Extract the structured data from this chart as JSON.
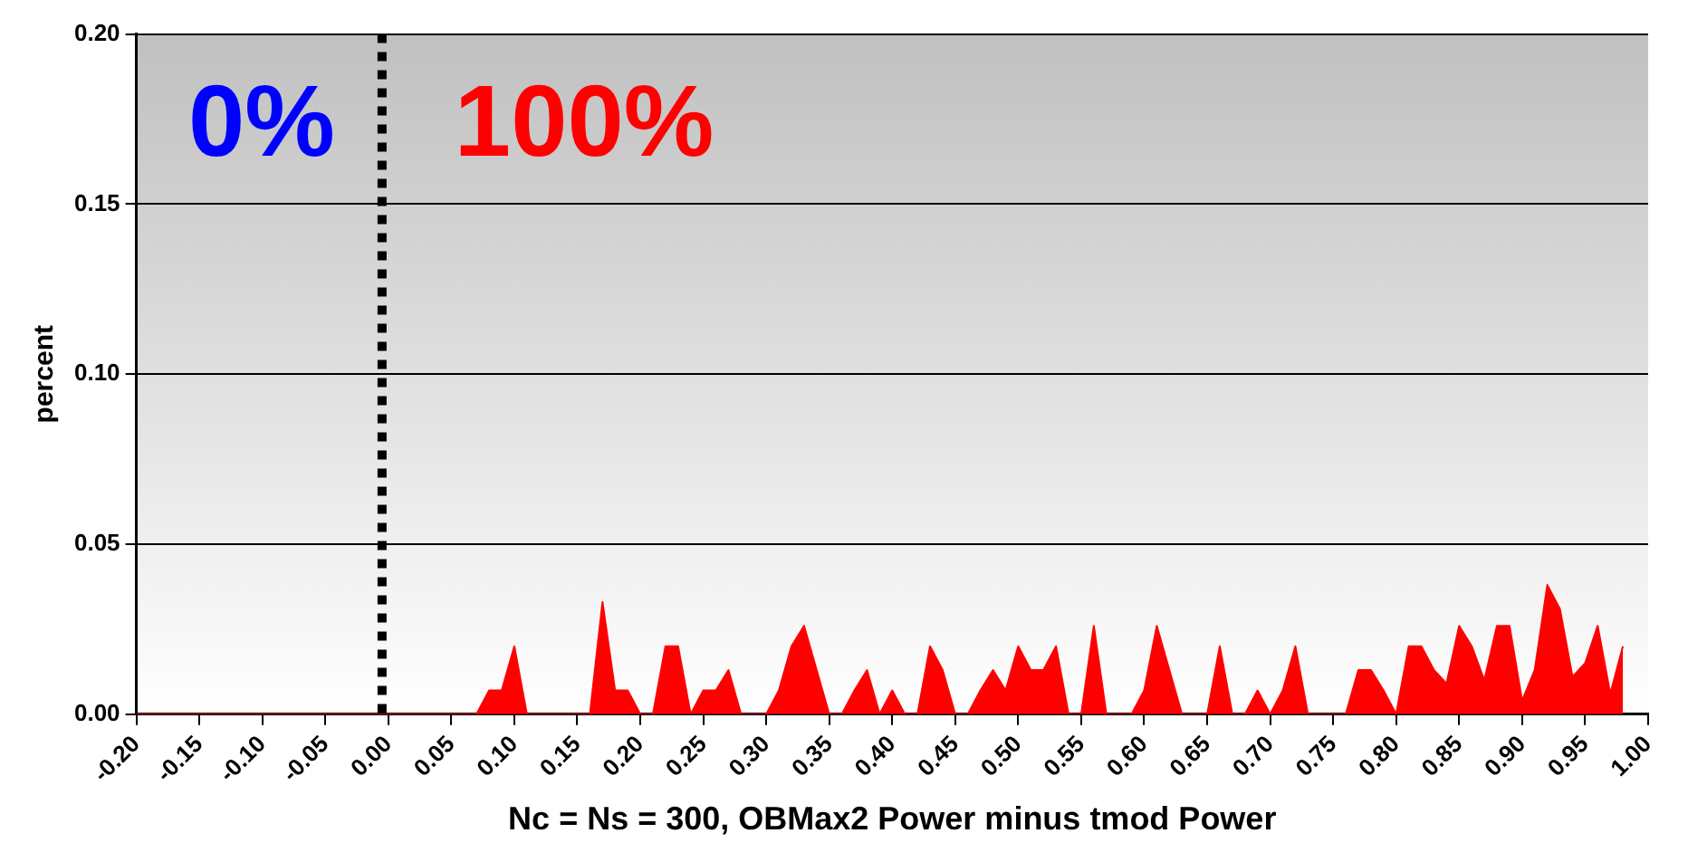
{
  "chart_data": {
    "type": "area",
    "xlabel": "Nc = Ns = 300, OBMax2 Power minus tmod Power",
    "ylabel": "percent",
    "annotations": [
      "0%",
      "100%"
    ],
    "x": [
      -0.2,
      -0.19,
      -0.18,
      -0.17,
      -0.16,
      -0.15,
      -0.14,
      -0.13,
      -0.12,
      -0.11,
      -0.1,
      -0.09,
      -0.08,
      -0.07,
      -0.06,
      -0.05,
      -0.04,
      -0.03,
      -0.02,
      -0.01,
      0,
      0.01,
      0.02,
      0.03,
      0.04,
      0.05,
      0.06,
      0.07,
      0.08,
      0.09,
      0.1,
      0.11,
      0.12,
      0.13,
      0.14,
      0.15,
      0.16,
      0.17,
      0.18,
      0.19,
      0.2,
      0.21,
      0.22,
      0.23,
      0.24,
      0.25,
      0.26,
      0.27,
      0.28,
      0.29,
      0.3,
      0.31,
      0.32,
      0.33,
      0.34,
      0.35,
      0.36,
      0.37,
      0.38,
      0.39,
      0.4,
      0.41,
      0.42,
      0.43,
      0.44,
      0.45,
      0.46,
      0.47,
      0.48,
      0.49,
      0.5,
      0.51,
      0.52,
      0.53,
      0.54,
      0.55,
      0.56,
      0.57,
      0.58,
      0.59,
      0.6,
      0.61,
      0.62,
      0.63,
      0.64,
      0.65,
      0.66,
      0.67,
      0.68,
      0.69,
      0.7,
      0.71,
      0.72,
      0.73,
      0.74,
      0.75,
      0.76,
      0.77,
      0.78,
      0.79,
      0.8,
      0.81,
      0.82,
      0.83,
      0.84,
      0.85,
      0.86,
      0.87,
      0.88,
      0.89,
      0.9,
      0.91,
      0.92,
      0.93,
      0.94,
      0.95,
      0.96,
      0.97,
      0.98
    ],
    "series": [
      {
        "color": "#ff0000",
        "values": [
          0,
          0,
          0,
          0,
          0,
          0,
          0,
          0,
          0,
          0,
          0,
          0,
          0,
          0,
          0,
          0,
          0,
          0,
          0,
          0,
          0,
          0,
          0,
          0,
          0,
          0,
          0,
          0,
          0.007,
          0.007,
          0.02,
          0,
          0,
          0,
          0,
          0,
          0,
          0.033,
          0.007,
          0.007,
          0,
          0,
          0.02,
          0.02,
          0,
          0.007,
          0.007,
          0.013,
          0,
          0,
          0,
          0.007,
          0.02,
          0.026,
          0.013,
          0,
          0,
          0.007,
          0.013,
          0,
          0.007,
          0,
          0,
          0.02,
          0.013,
          0,
          0,
          0.007,
          0.013,
          0.007,
          0.02,
          0.013,
          0.013,
          0.02,
          0,
          0,
          0.026,
          0,
          0,
          0,
          0.007,
          0.026,
          0.013,
          0,
          0,
          0,
          0.02,
          0,
          0,
          0.007,
          0,
          0.007,
          0.02,
          0,
          0,
          0,
          0,
          0.013,
          0.013,
          0.007,
          0,
          0.02,
          0.02,
          0.013,
          0.009,
          0.026,
          0.02,
          0.01,
          0.026,
          0.026,
          0.004,
          0.013,
          0.038,
          0.031,
          0.011,
          0.015,
          0.026,
          0.006,
          0.02
        ]
      }
    ],
    "xlim": [
      -0.2,
      1.0
    ],
    "xticks": [
      {
        "value": -0.2,
        "label": "-0.20"
      },
      {
        "value": -0.15,
        "label": "-0.15"
      },
      {
        "value": -0.1,
        "label": "-0.10"
      },
      {
        "value": -0.05,
        "label": "-0.05"
      },
      {
        "value": 0,
        "label": "0.00"
      },
      {
        "value": 0.05,
        "label": "0.05"
      },
      {
        "value": 0.1,
        "label": "0.10"
      },
      {
        "value": 0.15,
        "label": "0.15"
      },
      {
        "value": 0.2,
        "label": "0.20"
      },
      {
        "value": 0.25,
        "label": "0.25"
      },
      {
        "value": 0.3,
        "label": "0.30"
      },
      {
        "value": 0.35,
        "label": "0.35"
      },
      {
        "value": 0.4,
        "label": "0.40"
      },
      {
        "value": 0.45,
        "label": "0.45"
      },
      {
        "value": 0.5,
        "label": "0.50"
      },
      {
        "value": 0.55,
        "label": "0.55"
      },
      {
        "value": 0.6,
        "label": "0.60"
      },
      {
        "value": 0.65,
        "label": "0.65"
      },
      {
        "value": 0.7,
        "label": "0.70"
      },
      {
        "value": 0.75,
        "label": "0.75"
      },
      {
        "value": 0.8,
        "label": "0.80"
      },
      {
        "value": 0.85,
        "label": "0.85"
      },
      {
        "value": 0.9,
        "label": "0.90"
      },
      {
        "value": 0.95,
        "label": "0.95"
      },
      {
        "value": 1.0,
        "label": "1.00"
      }
    ],
    "ylim": [
      0,
      0.2
    ],
    "yticks": [
      {
        "value": 0,
        "label": "0.00"
      },
      {
        "value": 0.05,
        "label": "0.05"
      },
      {
        "value": 0.1,
        "label": "0.10"
      },
      {
        "value": 0.15,
        "label": "0.15"
      },
      {
        "value": 0.2,
        "label": "0.20"
      }
    ],
    "ref_lines": [
      {
        "axis": "x",
        "value": -0.005,
        "color": "#000000",
        "line_style": "dotted"
      }
    ],
    "grid": "y",
    "legend": false,
    "marker": "none"
  }
}
